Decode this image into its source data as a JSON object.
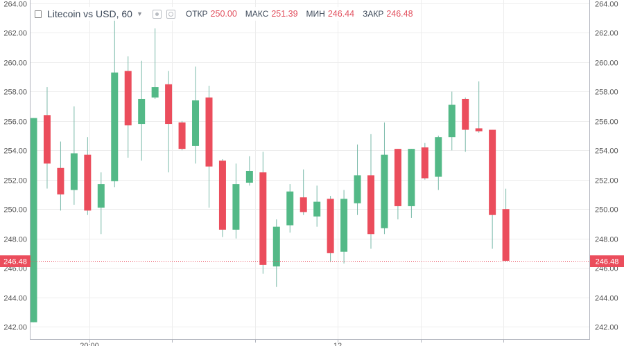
{
  "legend": {
    "symbol": "Litecoin vs USD, 60",
    "open_label": "ОТКР",
    "open_value": "250.00",
    "high_label": "МАКС",
    "high_value": "251.39",
    "low_label": "МИН",
    "low_value": "246.44",
    "close_label": "ЗАКР",
    "close_value": "246.48"
  },
  "colors": {
    "up": "#53b987",
    "down": "#eb4d5c",
    "wick": "#78b9a8",
    "grid": "#ededed",
    "price_line": "#eb4d5c",
    "axis_text": "#555555"
  },
  "chart_data": {
    "type": "candlestick",
    "title": "",
    "ylim": [
      241.2,
      264.2
    ],
    "grid": true,
    "y_ticks": [
      "242.00",
      "244.00",
      "246.00",
      "248.00",
      "250.00",
      "252.00",
      "254.00",
      "256.00",
      "258.00",
      "260.00",
      "262.00",
      "264.00"
    ],
    "x_tick_labels": [
      "20:00",
      "12"
    ],
    "last_price": "246.48",
    "candles": [
      {
        "open": 242.3,
        "high": 256.2,
        "low": 242.3,
        "close": 256.2
      },
      {
        "open": 256.4,
        "high": 258.3,
        "low": 251.4,
        "close": 253.1
      },
      {
        "open": 252.8,
        "high": 254.6,
        "low": 249.9,
        "close": 251.0
      },
      {
        "open": 251.3,
        "high": 257.0,
        "low": 250.3,
        "close": 253.8
      },
      {
        "open": 253.7,
        "high": 254.9,
        "low": 249.6,
        "close": 249.9
      },
      {
        "open": 250.1,
        "high": 252.5,
        "low": 248.3,
        "close": 251.7
      },
      {
        "open": 251.9,
        "high": 263.0,
        "low": 251.5,
        "close": 259.3
      },
      {
        "open": 259.4,
        "high": 260.4,
        "low": 253.5,
        "close": 255.7
      },
      {
        "open": 255.8,
        "high": 260.1,
        "low": 253.3,
        "close": 257.5
      },
      {
        "open": 257.6,
        "high": 262.3,
        "low": 257.5,
        "close": 258.3
      },
      {
        "open": 258.5,
        "high": 259.4,
        "low": 252.5,
        "close": 255.8
      },
      {
        "open": 255.9,
        "high": 256.0,
        "low": 254.0,
        "close": 254.1
      },
      {
        "open": 254.3,
        "high": 259.7,
        "low": 253.1,
        "close": 257.4
      },
      {
        "open": 257.6,
        "high": 258.4,
        "low": 250.1,
        "close": 252.9
      },
      {
        "open": 253.3,
        "high": 253.4,
        "low": 248.1,
        "close": 248.6
      },
      {
        "open": 248.6,
        "high": 253.1,
        "low": 248.0,
        "close": 251.7
      },
      {
        "open": 251.8,
        "high": 253.6,
        "low": 251.6,
        "close": 252.6
      },
      {
        "open": 252.5,
        "high": 253.9,
        "low": 245.6,
        "close": 246.2
      },
      {
        "open": 246.1,
        "high": 249.3,
        "low": 244.7,
        "close": 248.8
      },
      {
        "open": 248.9,
        "high": 251.7,
        "low": 248.4,
        "close": 251.2
      },
      {
        "open": 250.8,
        "high": 252.7,
        "low": 249.6,
        "close": 249.8
      },
      {
        "open": 249.5,
        "high": 251.6,
        "low": 248.8,
        "close": 250.5
      },
      {
        "open": 250.7,
        "high": 250.9,
        "low": 246.4,
        "close": 247.0
      },
      {
        "open": 247.1,
        "high": 251.3,
        "low": 246.3,
        "close": 250.7
      },
      {
        "open": 250.4,
        "high": 254.4,
        "low": 249.6,
        "close": 252.3
      },
      {
        "open": 252.3,
        "high": 255.1,
        "low": 247.3,
        "close": 248.3
      },
      {
        "open": 248.7,
        "high": 255.9,
        "low": 248.3,
        "close": 253.7
      },
      {
        "open": 254.1,
        "high": 254.1,
        "low": 249.3,
        "close": 250.2
      },
      {
        "open": 250.2,
        "high": 254.1,
        "low": 249.4,
        "close": 254.1
      },
      {
        "open": 254.2,
        "high": 254.5,
        "low": 252.0,
        "close": 252.1
      },
      {
        "open": 252.2,
        "high": 255.0,
        "low": 251.3,
        "close": 254.9
      },
      {
        "open": 254.9,
        "high": 258.0,
        "low": 254.0,
        "close": 257.1
      },
      {
        "open": 257.5,
        "high": 257.6,
        "low": 253.9,
        "close": 255.4
      },
      {
        "open": 255.5,
        "high": 258.7,
        "low": 255.2,
        "close": 255.3
      },
      {
        "open": 255.4,
        "high": 255.4,
        "low": 247.3,
        "close": 249.6
      },
      {
        "open": 250.0,
        "high": 251.39,
        "low": 246.44,
        "close": 246.48
      }
    ]
  }
}
